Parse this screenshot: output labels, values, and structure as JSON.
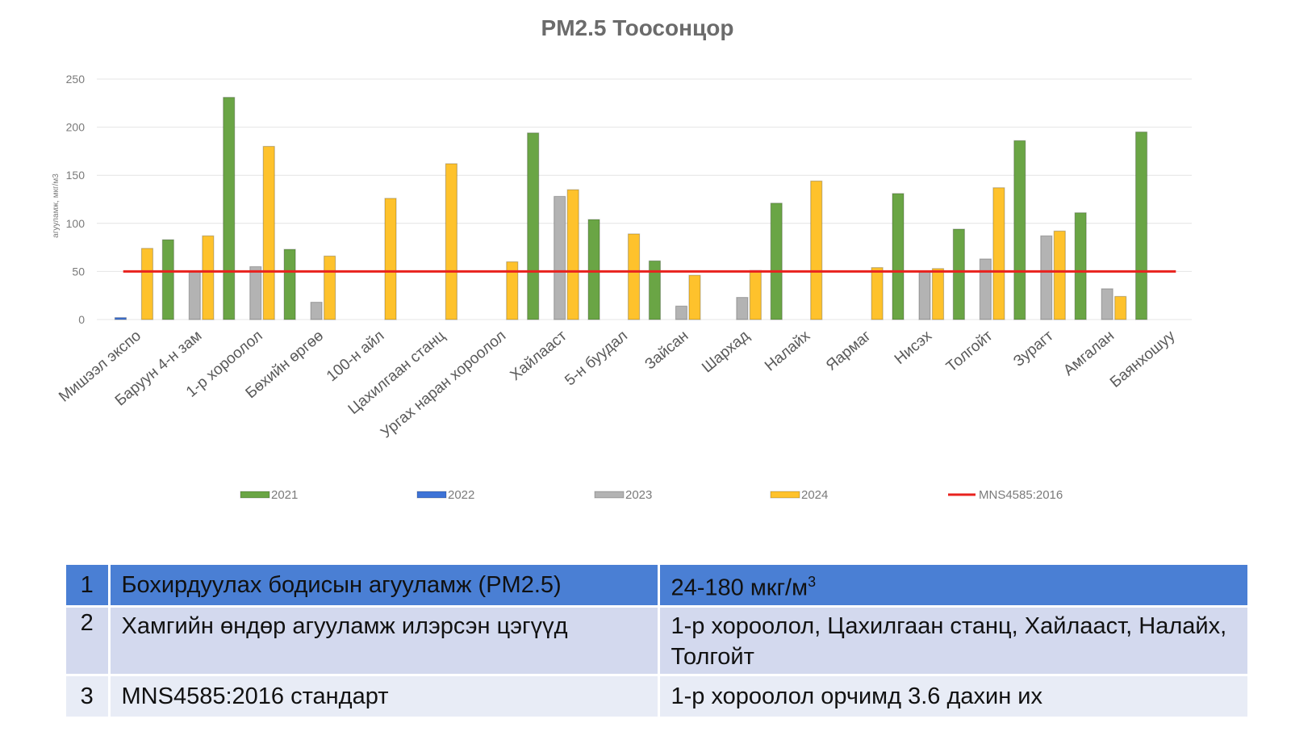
{
  "chart_data": {
    "type": "bar",
    "title": "PM2.5 Тоосонцор",
    "ylabel": "агууламж, мкг/м3",
    "ylim": [
      0,
      250
    ],
    "yticks": [
      0,
      50,
      100,
      150,
      200,
      250
    ],
    "grid": true,
    "legend_position": "bottom",
    "categories": [
      "Мишээл экспо",
      "Баруун 4-н зам",
      "1-р хороолол",
      "Бөхийн өргөө",
      "100-н айл",
      "Цахилгаан станц",
      "Ургах наран хороолол",
      "Хайлааст",
      "5-н буудал",
      "Зайсан",
      "Шархад",
      "Налайх",
      "Яармаг",
      "Нисэх",
      "Толгойт",
      "Зурагт",
      "Амгалан",
      "Баянхошуу"
    ],
    "series": [
      {
        "name": "2021",
        "color": "#6aa545",
        "values": [
          0,
          83,
          231,
          73,
          0,
          0,
          0,
          194,
          104,
          61,
          0,
          121,
          0,
          131,
          94,
          186,
          111,
          195
        ]
      },
      {
        "name": "2022",
        "color": "#3e73d6",
        "values": [
          2,
          0,
          0,
          0,
          0,
          0,
          0,
          0,
          0,
          0,
          0,
          0,
          0,
          0,
          0,
          0,
          0,
          0
        ]
      },
      {
        "name": "2023",
        "color": "#b3b3b3",
        "values": [
          0,
          50,
          55,
          18,
          0,
          0,
          0,
          128,
          0,
          14,
          23,
          0,
          0,
          50,
          63,
          87,
          32,
          0
        ]
      },
      {
        "name": "2024",
        "color": "#fec22c",
        "values": [
          74,
          87,
          180,
          66,
          126,
          162,
          60,
          135,
          89,
          46,
          51,
          144,
          54,
          53,
          137,
          92,
          24,
          0
        ]
      }
    ],
    "reference_line": {
      "name": "MNS4585:2016",
      "value": 50,
      "color": "#e8221e"
    }
  },
  "table": {
    "rows": [
      {
        "num": "1",
        "label": "Бохирдуулах бодисын агууламж (PM2.5)",
        "value": "24-180 мкг/м",
        "value_sup": "3"
      },
      {
        "num": "2",
        "label": "Хамгийн өндөр агууламж илэрсэн цэгүүд",
        "value": "1-р хороолол, Цахилгаан станц, Хайлааст, Налайх, Толгойт"
      },
      {
        "num": "3",
        "label": "MNS4585:2016 стандарт",
        "value": "1-р хороолол орчимд 3.6 дахин их"
      }
    ]
  }
}
